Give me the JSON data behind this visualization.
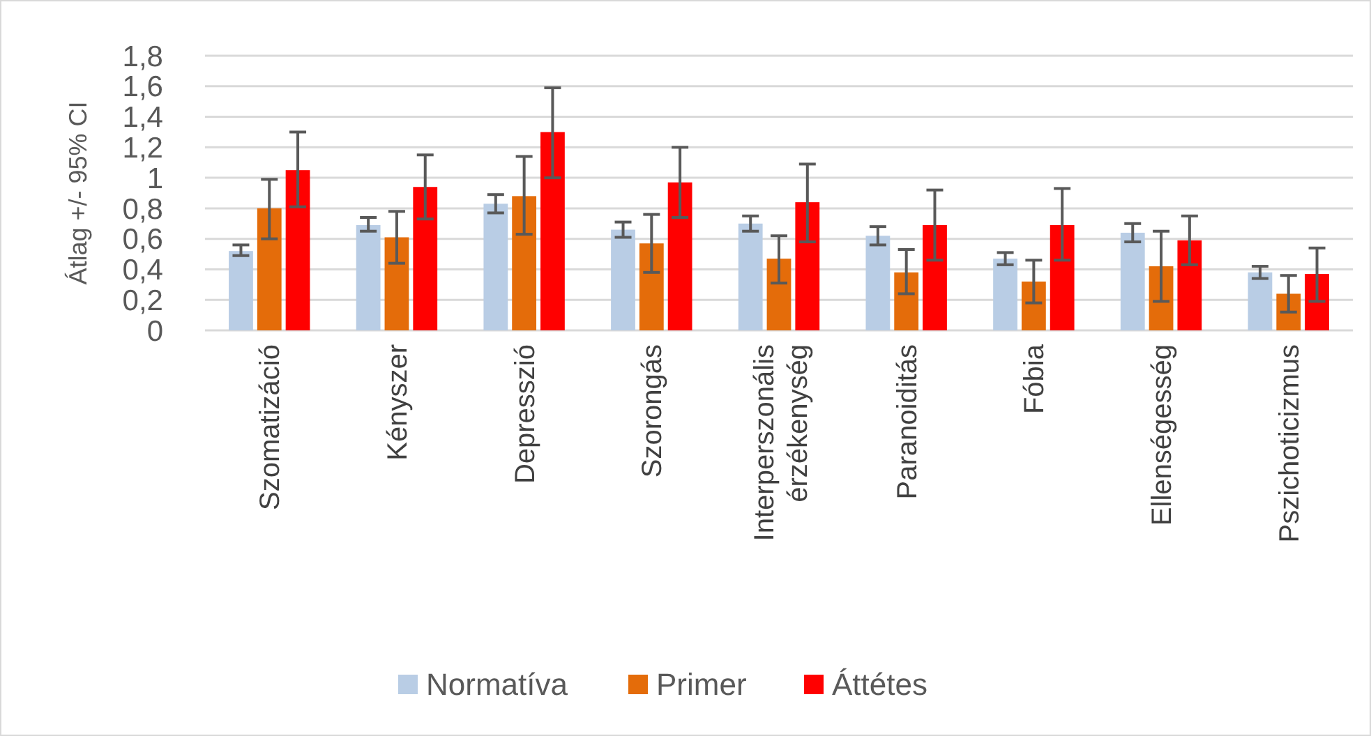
{
  "chart_data": {
    "type": "bar",
    "ylabel": "Átlag +/- 95% CI",
    "categories": [
      "Szomatizáció",
      "Kényszer",
      "Depresszió",
      "Szorongás",
      "Interperszonális érzékenység",
      "Paranoiditás",
      "Fóbia",
      "Ellenségesség",
      "Pszichoticizmus"
    ],
    "series": [
      {
        "name": "Normatíva",
        "color": "#b9cde5",
        "values": [
          0.52,
          0.69,
          0.83,
          0.66,
          0.7,
          0.62,
          0.47,
          0.64,
          0.38
        ],
        "errors": [
          [
            0.49,
            0.56
          ],
          [
            0.65,
            0.74
          ],
          [
            0.77,
            0.89
          ],
          [
            0.61,
            0.71
          ],
          [
            0.65,
            0.75
          ],
          [
            0.56,
            0.68
          ],
          [
            0.43,
            0.51
          ],
          [
            0.58,
            0.7
          ],
          [
            0.34,
            0.42
          ]
        ]
      },
      {
        "name": "Primer",
        "color": "#e46c0a",
        "values": [
          0.8,
          0.61,
          0.88,
          0.57,
          0.47,
          0.38,
          0.32,
          0.42,
          0.24
        ],
        "errors": [
          [
            0.6,
            0.99
          ],
          [
            0.44,
            0.78
          ],
          [
            0.63,
            1.14
          ],
          [
            0.38,
            0.76
          ],
          [
            0.31,
            0.62
          ],
          [
            0.24,
            0.53
          ],
          [
            0.18,
            0.46
          ],
          [
            0.19,
            0.65
          ],
          [
            0.12,
            0.36
          ]
        ]
      },
      {
        "name": "Áttétes",
        "color": "#ff0000",
        "values": [
          1.05,
          0.94,
          1.3,
          0.97,
          0.84,
          0.69,
          0.69,
          0.59,
          0.37
        ],
        "errors": [
          [
            0.81,
            1.3
          ],
          [
            0.73,
            1.15
          ],
          [
            1.0,
            1.59
          ],
          [
            0.74,
            1.2
          ],
          [
            0.58,
            1.09
          ],
          [
            0.46,
            0.92
          ],
          [
            0.46,
            0.93
          ],
          [
            0.43,
            0.75
          ],
          [
            0.19,
            0.54
          ]
        ]
      }
    ],
    "ylim": [
      0,
      1.8
    ],
    "yticks": [
      0,
      {
        "value": 0.2,
        "label": "0,2"
      },
      {
        "value": 0.4,
        "label": "0,4"
      },
      {
        "value": 0.6,
        "label": "0,6"
      },
      {
        "value": 0.8,
        "label": "0,8"
      },
      1,
      {
        "value": 1.2,
        "label": "1,2"
      },
      {
        "value": 1.4,
        "label": "1,4"
      },
      {
        "value": 1.6,
        "label": "1,6"
      },
      {
        "value": 1.8,
        "label": "1,8"
      }
    ],
    "grid": "y",
    "legend": "bottom"
  }
}
